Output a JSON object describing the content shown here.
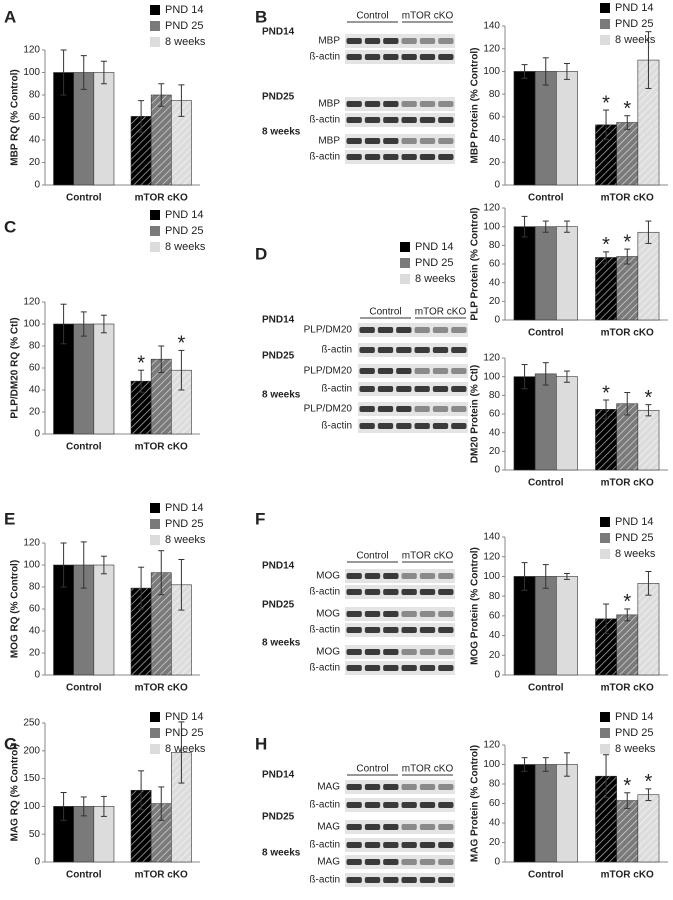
{
  "chart_data": [
    {
      "panel": "A",
      "type": "bar",
      "ylabel": "MBP RQ (% Control)",
      "categories": [
        "Control",
        "mTOR cKO"
      ],
      "hatch": [
        false,
        true
      ],
      "ylim": [
        0,
        120
      ],
      "yticks": [
        0,
        20,
        40,
        60,
        80,
        100,
        120
      ],
      "series": [
        {
          "name": "PND 14",
          "color": "#000000",
          "values": [
            100,
            61
          ],
          "errors": [
            20,
            14
          ],
          "significance": [
            null,
            null
          ]
        },
        {
          "name": "PND 25",
          "color": "#7a7a7a",
          "values": [
            100,
            80
          ],
          "errors": [
            15,
            10
          ],
          "significance": [
            null,
            null
          ]
        },
        {
          "name": "8 weeks",
          "color": "#dcdcdc",
          "values": [
            100,
            75
          ],
          "errors": [
            10,
            14
          ],
          "significance": [
            null,
            null
          ]
        }
      ]
    },
    {
      "type": "bar",
      "ylabel": "MBP Protein (% Control)",
      "categories": [
        "Control",
        "mTOR cKO"
      ],
      "hatch": [
        false,
        true
      ],
      "ylim": [
        0,
        140
      ],
      "yticks": [
        0,
        20,
        40,
        60,
        80,
        100,
        120,
        140
      ],
      "series": [
        {
          "name": "PND 14",
          "color": "#000000",
          "values": [
            100,
            53
          ],
          "errors": [
            6,
            13
          ],
          "significance": [
            null,
            "*"
          ]
        },
        {
          "name": "PND 25",
          "color": "#7a7a7a",
          "values": [
            100,
            55
          ],
          "errors": [
            12,
            6
          ],
          "significance": [
            null,
            "*"
          ]
        },
        {
          "name": "8 weeks",
          "color": "#dcdcdc",
          "values": [
            100,
            110
          ],
          "errors": [
            7,
            25
          ],
          "significance": [
            null,
            null
          ]
        }
      ]
    },
    {
      "panel": "C",
      "type": "bar",
      "ylabel": "PLP/DM20 RQ (% Ctl)",
      "categories": [
        "Control",
        "mTOR cKO"
      ],
      "hatch": [
        false,
        true
      ],
      "ylim": [
        0,
        120
      ],
      "yticks": [
        0,
        20,
        40,
        60,
        80,
        100,
        120
      ],
      "series": [
        {
          "name": "PND 14",
          "color": "#000000",
          "values": [
            100,
            48
          ],
          "errors": [
            18,
            10
          ],
          "significance": [
            null,
            "*"
          ]
        },
        {
          "name": "PND 25",
          "color": "#7a7a7a",
          "values": [
            100,
            68
          ],
          "errors": [
            11,
            12
          ],
          "significance": [
            null,
            null
          ]
        },
        {
          "name": "8 weeks",
          "color": "#dcdcdc",
          "values": [
            100,
            58
          ],
          "errors": [
            8,
            18
          ],
          "significance": [
            null,
            "*"
          ]
        }
      ]
    },
    {
      "type": "bar",
      "ylabel": "PLP Protein (% Control)",
      "categories": [
        "Control",
        "mTOR cKO"
      ],
      "hatch": [
        false,
        true
      ],
      "ylim": [
        0,
        120
      ],
      "yticks": [
        0,
        20,
        40,
        60,
        80,
        100,
        120
      ],
      "series": [
        {
          "name": "PND 14",
          "color": "#000000",
          "values": [
            100,
            67
          ],
          "errors": [
            11,
            6
          ],
          "significance": [
            null,
            "*"
          ]
        },
        {
          "name": "PND 25",
          "color": "#7a7a7a",
          "values": [
            100,
            68
          ],
          "errors": [
            6,
            8
          ],
          "significance": [
            null,
            "*"
          ]
        },
        {
          "name": "8 weeks",
          "color": "#dcdcdc",
          "values": [
            100,
            94
          ],
          "errors": [
            6,
            12
          ],
          "significance": [
            null,
            null
          ]
        }
      ]
    },
    {
      "type": "bar",
      "ylabel": "DM20 Protein (% Ctl)",
      "categories": [
        "Control",
        "mTOR cKO"
      ],
      "hatch": [
        false,
        true
      ],
      "ylim": [
        0,
        120
      ],
      "yticks": [
        0,
        20,
        40,
        60,
        80,
        100,
        120
      ],
      "series": [
        {
          "color": "#000000",
          "values": [
            100,
            65
          ],
          "errors": [
            13,
            10
          ],
          "significance": [
            null,
            "*"
          ]
        },
        {
          "color": "#7a7a7a",
          "values": [
            103,
            71
          ],
          "errors": [
            12,
            12
          ],
          "significance": [
            null,
            null
          ]
        },
        {
          "color": "#dcdcdc",
          "values": [
            100,
            64
          ],
          "errors": [
            6,
            6
          ],
          "significance": [
            null,
            "*"
          ]
        }
      ]
    },
    {
      "panel": "E",
      "type": "bar",
      "ylabel": "MOG RQ (% Control)",
      "categories": [
        "Control",
        "mTOR cKO"
      ],
      "hatch": [
        false,
        true
      ],
      "ylim": [
        0,
        120
      ],
      "yticks": [
        0,
        20,
        40,
        60,
        80,
        100,
        120
      ],
      "series": [
        {
          "name": "PND 14",
          "color": "#000000",
          "values": [
            100,
            79
          ],
          "errors": [
            20,
            19
          ],
          "significance": [
            null,
            null
          ]
        },
        {
          "name": "PND 25",
          "color": "#7a7a7a",
          "values": [
            100,
            93
          ],
          "errors": [
            21,
            20
          ],
          "significance": [
            null,
            null
          ]
        },
        {
          "name": "8 weeks",
          "color": "#dcdcdc",
          "values": [
            100,
            82
          ],
          "errors": [
            8,
            23
          ],
          "significance": [
            null,
            null
          ]
        }
      ]
    },
    {
      "type": "bar",
      "ylabel": "MOG Protein (% Control)",
      "categories": [
        "Control",
        "mTOR cKO"
      ],
      "hatch": [
        false,
        true
      ],
      "ylim": [
        0,
        140
      ],
      "yticks": [
        0,
        20,
        40,
        60,
        80,
        100,
        120,
        140
      ],
      "series": [
        {
          "name": "PND 14",
          "color": "#000000",
          "values": [
            100,
            57
          ],
          "errors": [
            14,
            15
          ],
          "significance": [
            null,
            null
          ]
        },
        {
          "name": "PND 25",
          "color": "#7a7a7a",
          "values": [
            100,
            61
          ],
          "errors": [
            12,
            6
          ],
          "significance": [
            null,
            "*"
          ]
        },
        {
          "name": "8 weeks",
          "color": "#dcdcdc",
          "values": [
            100,
            93
          ],
          "errors": [
            3,
            12
          ],
          "significance": [
            null,
            null
          ]
        }
      ]
    },
    {
      "panel": "G",
      "type": "bar",
      "ylabel": "MAG RQ (% Control)",
      "categories": [
        "Control",
        "mTOR cKO"
      ],
      "hatch": [
        false,
        true
      ],
      "ylim": [
        0,
        250
      ],
      "yticks": [
        0,
        50,
        100,
        150,
        200,
        250
      ],
      "series": [
        {
          "name": "PND 14",
          "color": "#000000",
          "values": [
            100,
            129
          ],
          "errors": [
            25,
            35
          ],
          "significance": [
            null,
            null
          ]
        },
        {
          "name": "PND 25",
          "color": "#7a7a7a",
          "values": [
            100,
            105
          ],
          "errors": [
            17,
            30
          ],
          "significance": [
            null,
            null
          ]
        },
        {
          "name": "8 weeks",
          "color": "#dcdcdc",
          "values": [
            100,
            197
          ],
          "errors": [
            18,
            55
          ],
          "significance": [
            null,
            null
          ]
        }
      ]
    },
    {
      "type": "bar",
      "ylabel": "MAG Protein (% Control)",
      "categories": [
        "Control",
        "mTOR cKO"
      ],
      "hatch": [
        false,
        true
      ],
      "ylim": [
        0,
        120
      ],
      "yticks": [
        0,
        20,
        40,
        60,
        80,
        100,
        120
      ],
      "series": [
        {
          "name": "PND 14",
          "color": "#000000",
          "values": [
            100,
            88
          ],
          "errors": [
            7,
            22
          ],
          "significance": [
            null,
            null
          ]
        },
        {
          "name": "PND 25",
          "color": "#7a7a7a",
          "values": [
            100,
            63
          ],
          "errors": [
            7,
            8
          ],
          "significance": [
            null,
            "*"
          ]
        },
        {
          "name": "8 weeks",
          "color": "#dcdcdc",
          "values": [
            100,
            69
          ],
          "errors": [
            12,
            6
          ],
          "significance": [
            null,
            "*"
          ]
        }
      ]
    }
  ],
  "blots": [
    {
      "panel": "B",
      "groups": [
        "Control",
        "mTOR cKO"
      ],
      "rows": [
        {
          "time": "PND14",
          "bands": [
            "MBP",
            "ß-actin"
          ]
        },
        {
          "time": "PND25",
          "bands": [
            "MBP",
            "ß-actin"
          ]
        },
        {
          "time": "8 weeks",
          "bands": [
            "MBP",
            "ß-actin"
          ]
        }
      ]
    },
    {
      "panel": "D",
      "groups": [
        "Control",
        "mTOR cKO"
      ],
      "rows": [
        {
          "time": "PND14",
          "bands": [
            "PLP/DM20",
            "ß-actin"
          ]
        },
        {
          "time": "PND25",
          "bands": [
            "PLP/DM20",
            "ß-actin"
          ]
        },
        {
          "time": "8 weeks",
          "bands": [
            "PLP/DM20",
            "ß-actin"
          ]
        }
      ]
    },
    {
      "panel": "F",
      "groups": [
        "Control",
        "mTOR cKO"
      ],
      "rows": [
        {
          "time": "PND14",
          "bands": [
            "MOG",
            "ß-actin"
          ]
        },
        {
          "time": "PND25",
          "bands": [
            "MOG",
            "ß-actin"
          ]
        },
        {
          "time": "8 weeks",
          "bands": [
            "MOG",
            "ß-actin"
          ]
        }
      ]
    },
    {
      "panel": "H",
      "groups": [
        "Control",
        "mTOR cKO"
      ],
      "rows": [
        {
          "time": "PND14",
          "bands": [
            "MAG",
            "ß-actin"
          ]
        },
        {
          "time": "PND25",
          "bands": [
            "MAG",
            "ß-actin"
          ]
        },
        {
          "time": "8 weeks",
          "bands": [
            "MAG",
            "ß-actin"
          ]
        }
      ]
    }
  ]
}
